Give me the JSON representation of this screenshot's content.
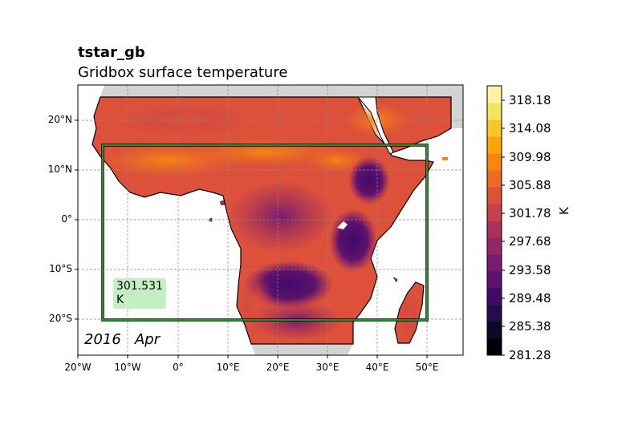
{
  "title": {
    "variable": "tstar_gb",
    "long_name": "Gridbox surface temperature"
  },
  "date": {
    "year": "2016",
    "month": "Apr"
  },
  "map": {
    "projection": "PlateCarree",
    "lon_range": [
      -20,
      57
    ],
    "lat_range": [
      -27,
      27
    ],
    "gridlines": true,
    "gridline_style": "dashed",
    "ocean_color": "#ffffff",
    "land_outside_data_color": "#d3d3d3",
    "data_lon_range": [
      -15,
      55
    ],
    "data_lat_range": [
      -25,
      25
    ],
    "region_box": {
      "lon_min": -15,
      "lon_max": 50,
      "lat_min": -20,
      "lat_max": 15,
      "color": "#2ca02c"
    },
    "xticks": [
      "20°W",
      "10°W",
      "0°",
      "10°E",
      "20°E",
      "30°E",
      "40°E",
      "50°E"
    ],
    "yticks": [
      "20°N",
      "10°N",
      "0°",
      "10°S",
      "20°S"
    ]
  },
  "region_mean": {
    "value": "301.531",
    "unit": "K"
  },
  "colorbar": {
    "colormap": "inferno",
    "unit": "K",
    "min": 281.28,
    "max": 320.23,
    "levels": 19,
    "tick_labels": [
      "318.18",
      "314.08",
      "309.98",
      "305.88",
      "301.78",
      "297.68",
      "293.58",
      "289.48",
      "285.38",
      "281.28"
    ],
    "colors": [
      "#000004",
      "#0c0826",
      "#240c4f",
      "#420a68",
      "#5d126e",
      "#781c6d",
      "#932667",
      "#ad305c",
      "#c73e4c",
      "#dd513a",
      "#ed6925",
      "#f8850f",
      "#fca50a",
      "#fac62d",
      "#f2e661",
      "#fcf3a0"
    ]
  }
}
